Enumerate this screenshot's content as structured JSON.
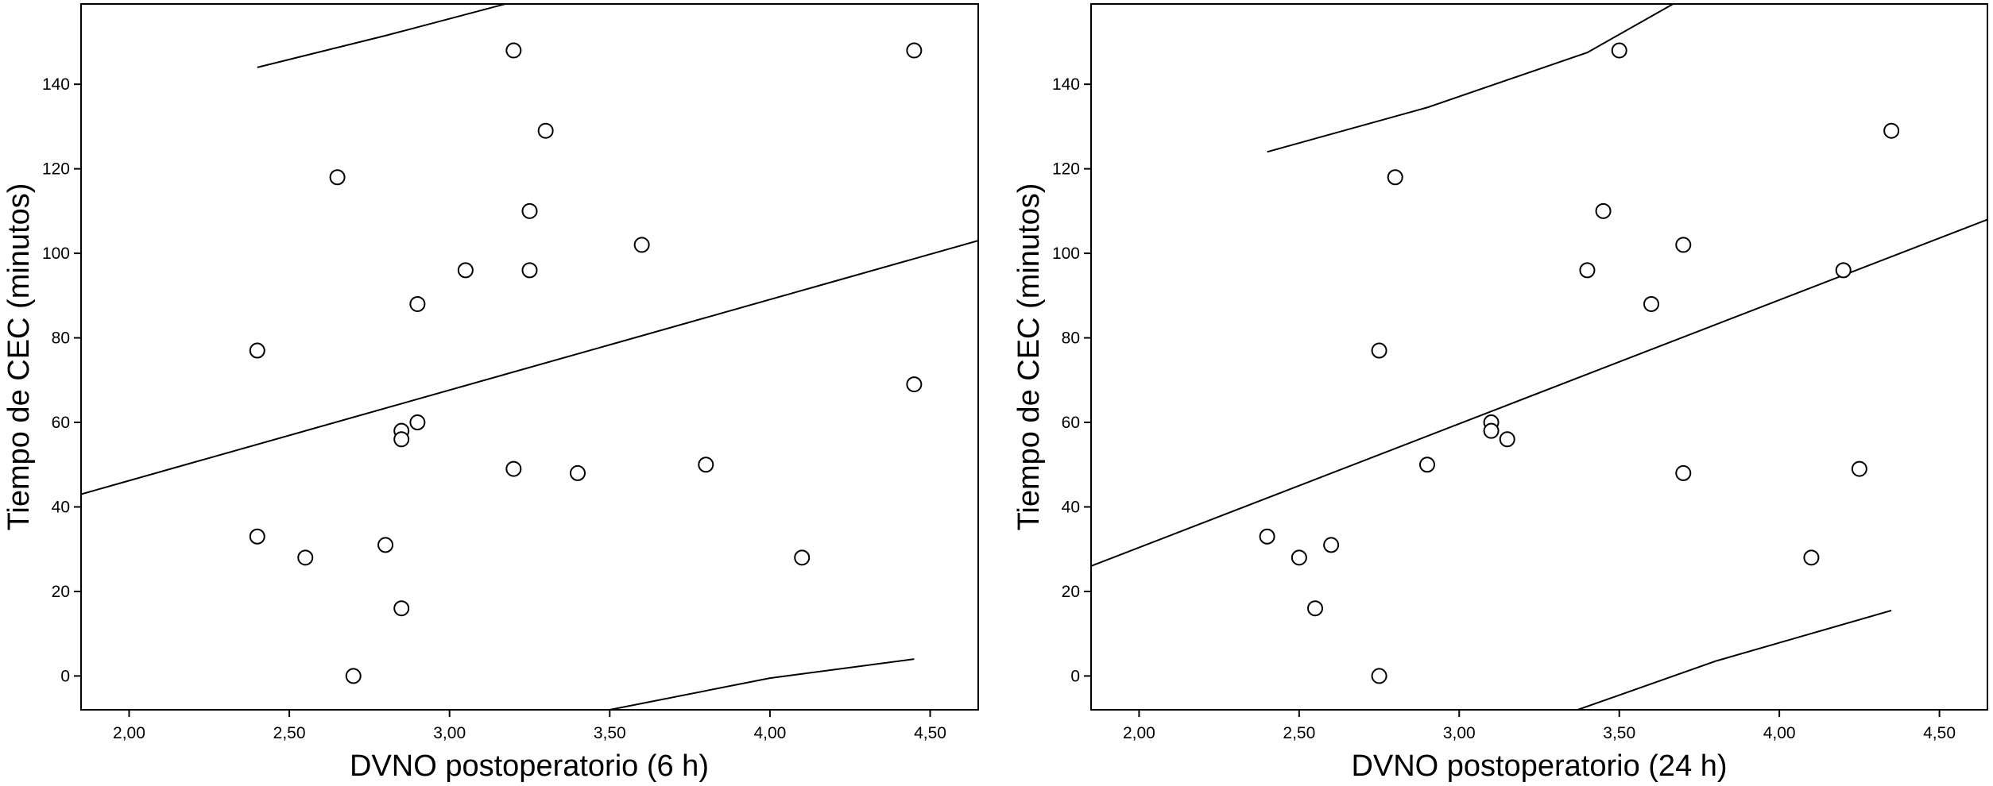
{
  "chart_data": [
    {
      "type": "scatter",
      "xlabel": "DVNO postoperatorio (6 h)",
      "ylabel": "Tiempo de CEC (minutos)",
      "xlim": [
        1.85,
        4.65
      ],
      "ylim": [
        -8,
        159
      ],
      "xticks": [
        "2,00",
        "2,50",
        "3,00",
        "3,50",
        "4,00",
        "4,50"
      ],
      "yticks": [
        "0",
        "20",
        "40",
        "60",
        "80",
        "100",
        "120",
        "140"
      ],
      "grid": false,
      "points": {
        "x": [
          2.4,
          2.4,
          2.55,
          2.65,
          2.7,
          2.8,
          2.85,
          2.85,
          2.85,
          2.9,
          2.9,
          3.05,
          3.2,
          3.2,
          3.25,
          3.25,
          3.3,
          3.4,
          3.6,
          3.8,
          4.1,
          4.45,
          4.45
        ],
        "y": [
          77,
          33,
          28,
          118,
          0,
          31,
          58,
          56,
          16,
          88,
          60,
          96,
          148,
          49,
          110,
          96,
          129,
          48,
          102,
          50,
          28,
          148,
          69
        ]
      },
      "fit_line": {
        "x": [
          1.85,
          4.65
        ],
        "y": [
          43,
          103
        ]
      },
      "upper_band": {
        "x": [
          2.4,
          2.8,
          3.2
        ],
        "y": [
          144,
          151.5,
          159.5
        ]
      },
      "lower_band": {
        "x": [
          3.5,
          4.0,
          4.45
        ],
        "y": [
          -8,
          -0.5,
          4
        ]
      }
    },
    {
      "type": "scatter",
      "xlabel": "DVNO postoperatorio (24 h)",
      "ylabel": "Tiempo de CEC (minutos)",
      "xlim": [
        1.85,
        4.65
      ],
      "ylim": [
        -8,
        159
      ],
      "xticks": [
        "2,00",
        "2,50",
        "3,00",
        "3,50",
        "4,00",
        "4,50"
      ],
      "yticks": [
        "0",
        "20",
        "40",
        "60",
        "80",
        "100",
        "120",
        "140"
      ],
      "grid": false,
      "points": {
        "x": [
          2.4,
          2.5,
          2.55,
          2.6,
          2.75,
          2.75,
          2.8,
          2.9,
          3.1,
          3.1,
          3.15,
          3.4,
          3.45,
          3.5,
          3.6,
          3.7,
          3.7,
          4.1,
          4.2,
          4.25,
          4.35
        ],
        "y": [
          33,
          28,
          16,
          31,
          77,
          0,
          118,
          50,
          60,
          58,
          56,
          96,
          110,
          148,
          88,
          102,
          48,
          28,
          96,
          49,
          129
        ]
      },
      "fit_line": {
        "x": [
          1.85,
          4.65
        ],
        "y": [
          26,
          108
        ]
      },
      "upper_band": {
        "x": [
          2.4,
          2.9,
          3.4,
          3.68
        ],
        "y": [
          124,
          134.5,
          147.5,
          159.5
        ]
      },
      "lower_band": {
        "x": [
          3.37,
          3.8,
          4.35
        ],
        "y": [
          -8,
          3.5,
          15.5
        ]
      }
    }
  ]
}
